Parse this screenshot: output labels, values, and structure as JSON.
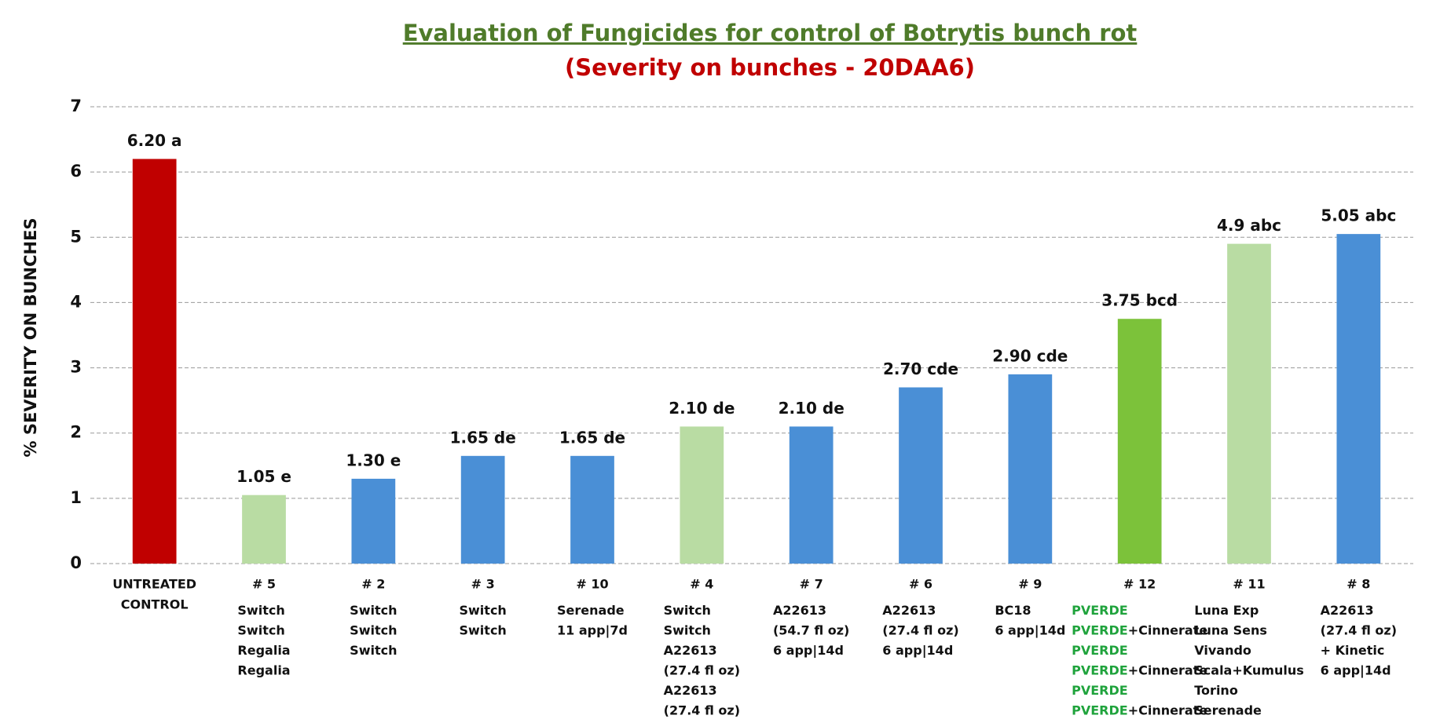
{
  "chart_data": {
    "type": "bar",
    "title": "Evaluation of Fungicides for control of Botrytis bunch rot",
    "subtitle": "(Severity on bunches - 20DAA6)",
    "y_label": "% SEVERITY ON BUNCHES",
    "categories": [
      [
        "UNTREATED",
        "CONTROL"
      ],
      [
        "# 5"
      ],
      [
        "# 2"
      ],
      [
        "# 3"
      ],
      [
        "# 10"
      ],
      [
        "# 4"
      ],
      [
        "# 7"
      ],
      [
        "# 6"
      ],
      [
        "# 9"
      ],
      [
        "# 12"
      ],
      [
        "# 11"
      ],
      [
        "# 8"
      ]
    ],
    "treatments": [
      [],
      [
        [
          "Switch"
        ],
        [
          "Switch"
        ],
        [
          "Regalia"
        ],
        [
          "Regalia"
        ]
      ],
      [
        [
          "Switch"
        ],
        [
          "Switch"
        ],
        [
          "Switch"
        ]
      ],
      [
        [
          "Switch"
        ],
        [
          "Switch"
        ]
      ],
      [
        [
          "Serenade"
        ],
        [
          "11 app|7d"
        ]
      ],
      [
        [
          "Switch"
        ],
        [
          "Switch"
        ],
        [
          "A22613"
        ],
        [
          "(27.4 fl oz)"
        ],
        [
          "A22613"
        ],
        [
          "(27.4 fl oz)"
        ]
      ],
      [
        [
          "A22613"
        ],
        [
          "(54.7 fl oz)"
        ],
        [
          "6 app|14d"
        ]
      ],
      [
        [
          "A22613"
        ],
        [
          "(27.4 fl oz)"
        ],
        [
          "6 app|14d"
        ]
      ],
      [
        [
          "BC18"
        ],
        [
          "6 app|14d"
        ]
      ],
      [
        [
          {
            "text": "PVERDE",
            "color": "#1fa33c"
          }
        ],
        [
          {
            "text": "PVERDE",
            "color": "#1fa33c"
          },
          "+Cinnerate"
        ],
        [
          {
            "text": "PVERDE",
            "color": "#1fa33c"
          }
        ],
        [
          {
            "text": "PVERDE",
            "color": "#1fa33c"
          },
          "+Cinnerate"
        ],
        [
          {
            "text": "PVERDE",
            "color": "#1fa33c"
          }
        ],
        [
          {
            "text": "PVERDE",
            "color": "#1fa33c"
          },
          "+Cinnerate"
        ]
      ],
      [
        [
          "Luna Exp"
        ],
        [
          "Luna Sens"
        ],
        [
          "Vivando"
        ],
        [
          "Scala+Kumulus"
        ],
        [
          "Torino"
        ],
        [
          "Serenade"
        ]
      ],
      [
        [
          "A22613"
        ],
        [
          "(27.4 fl oz)"
        ],
        [
          "+ Kinetic"
        ],
        [
          "6 app|14d"
        ]
      ]
    ],
    "values": [
      6.2,
      1.05,
      1.3,
      1.65,
      1.65,
      2.1,
      2.1,
      2.7,
      2.9,
      3.75,
      4.9,
      5.05
    ],
    "value_labels": [
      "6.20 a",
      "1.05 e",
      "1.30 e",
      "1.65 de",
      "1.65 de",
      "2.10 de",
      "2.10 de",
      "2.70 cde",
      "2.90 cde",
      "3.75 bcd",
      "4.9 abc",
      "5.05 abc"
    ],
    "colors": [
      "#c00000",
      "#b9dca3",
      "#4a8fd6",
      "#4a8fd6",
      "#4a8fd6",
      "#b9dca3",
      "#4a8fd6",
      "#4a8fd6",
      "#4a8fd6",
      "#7cc23a",
      "#b9dca3",
      "#4a8fd6"
    ],
    "ylim": [
      0,
      7
    ],
    "yticks": [
      0,
      1,
      2,
      3,
      4,
      5,
      6,
      7
    ],
    "grid": true
  }
}
